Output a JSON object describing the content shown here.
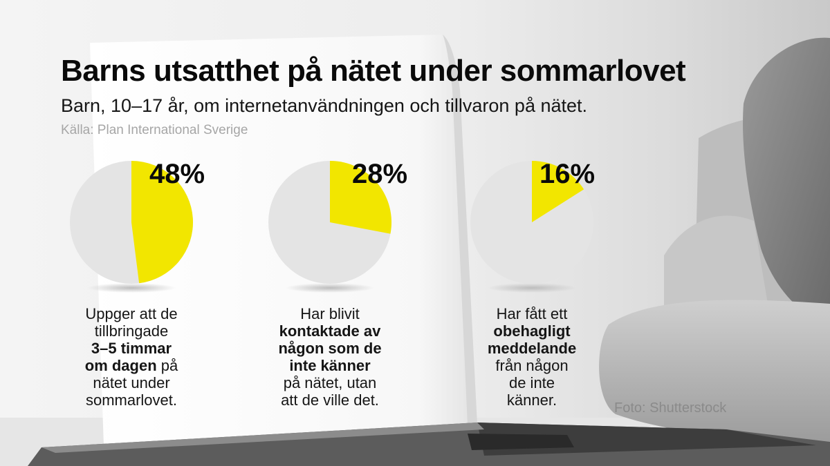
{
  "title": "Barns utsatthet på nätet under sommarlovet",
  "subtitle": "Barn, 10–17 år, om internetanvändningen och tillvaron på nätet.",
  "source": "Källa: Plan International Sverige",
  "photo_credit": "Foto: Shutterstock",
  "colors": {
    "slice": "#f2e600",
    "pie_base": "#e4e4e4",
    "background": "#f2f2f2"
  },
  "chart_data": {
    "type": "pie",
    "title": "Barns utsatthet på nätet under sommarlovet",
    "subtitle": "Barn, 10–17 år, om internetanvändningen och tillvaron på nätet.",
    "pies": [
      {
        "value": 48,
        "label": "48%",
        "text_lines": [
          [
            {
              "t": "Uppger att de",
              "b": false
            }
          ],
          [
            {
              "t": "tillbringade",
              "b": false
            }
          ],
          [
            {
              "t": "3–5 timmar",
              "b": true
            }
          ],
          [
            {
              "t": "om dagen",
              "b": true
            },
            {
              "t": " på",
              "b": false
            }
          ],
          [
            {
              "t": "nätet under",
              "b": false
            }
          ],
          [
            {
              "t": "sommarlovet.",
              "b": false
            }
          ]
        ]
      },
      {
        "value": 28,
        "label": "28%",
        "text_lines": [
          [
            {
              "t": "Har blivit",
              "b": false
            }
          ],
          [
            {
              "t": "kontaktade av",
              "b": true
            }
          ],
          [
            {
              "t": "någon som de",
              "b": true
            }
          ],
          [
            {
              "t": "inte känner",
              "b": true
            }
          ],
          [
            {
              "t": "på nätet, utan",
              "b": false
            }
          ],
          [
            {
              "t": "att de ville det.",
              "b": false
            }
          ]
        ]
      },
      {
        "value": 16,
        "label": "16%",
        "text_lines": [
          [
            {
              "t": "Har fått ett",
              "b": false
            }
          ],
          [
            {
              "t": "obehagligt",
              "b": true
            }
          ],
          [
            {
              "t": "meddelande",
              "b": true
            }
          ],
          [
            {
              "t": "från någon",
              "b": false
            }
          ],
          [
            {
              "t": "de inte",
              "b": false
            }
          ],
          [
            {
              "t": "känner.",
              "b": false
            }
          ]
        ]
      }
    ]
  }
}
